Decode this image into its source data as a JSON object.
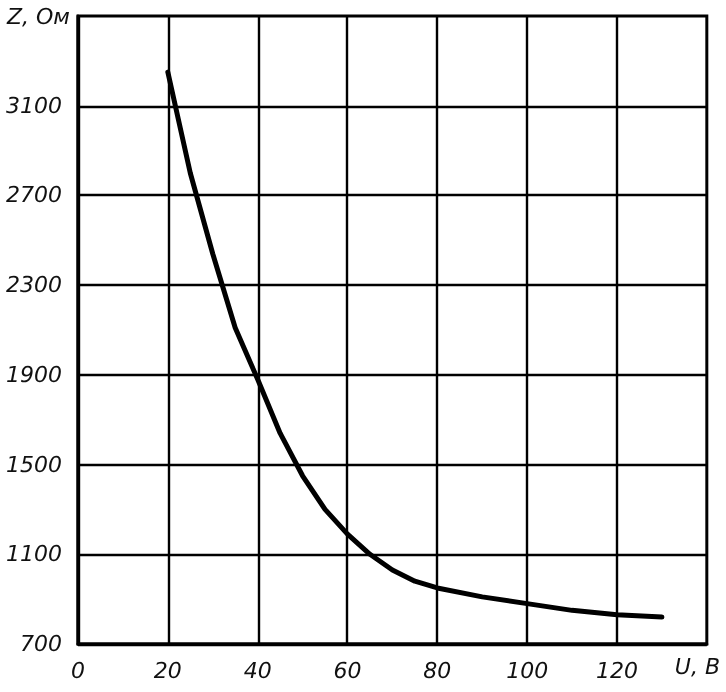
{
  "chart_data": {
    "type": "line",
    "xlabel": "U, В",
    "ylabel": "Z, Ом",
    "x": [
      20,
      25,
      30,
      35,
      40,
      45,
      50,
      55,
      60,
      65,
      70,
      75,
      80,
      90,
      100,
      110,
      120,
      130
    ],
    "series": [
      {
        "color": "#000000",
        "values": [
          3250,
          2800,
          2440,
          2110,
          1880,
          1640,
          1450,
          1300,
          1190,
          1100,
          1030,
          980,
          950,
          910,
          880,
          850,
          830,
          820
        ]
      }
    ],
    "xlim": [
      0,
      140
    ],
    "xticks": [
      0,
      20,
      40,
      60,
      80,
      100,
      120
    ],
    "ylim": [
      700,
      3500
    ],
    "yticks": [
      700,
      1100,
      1500,
      1900,
      2300,
      2700,
      3100
    ],
    "grid": true,
    "marker": "none",
    "line_style": "solid"
  }
}
